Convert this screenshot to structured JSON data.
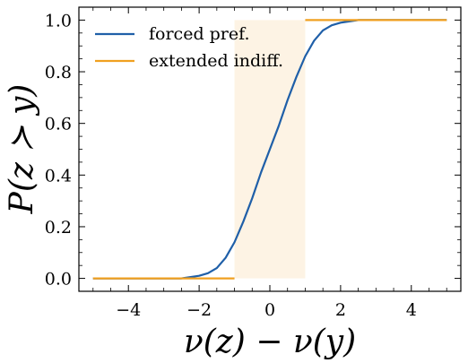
{
  "chart_data": {
    "type": "line",
    "xlabel": "ν(z) − ν(y)",
    "ylabel": "P(z ≻ y)",
    "xlim": [
      -5.4,
      5.4
    ],
    "ylim": [
      -0.05,
      1.05
    ],
    "xticks": [
      -4,
      -2,
      0,
      2,
      4
    ],
    "xtick_labels": [
      "−4",
      "−2",
      "0",
      "2",
      "4"
    ],
    "yticks": [
      0.0,
      0.2,
      0.4,
      0.6,
      0.8,
      1.0
    ],
    "ytick_labels": [
      "0.0",
      "0.2",
      "0.4",
      "0.6",
      "0.8",
      "1.0"
    ],
    "shaded_region": {
      "x": [
        -1,
        1
      ],
      "color": "#fdf3e4"
    },
    "legend": "top-left",
    "grid": false,
    "series": [
      {
        "name": "forced pref.",
        "color": "#1f5fa8",
        "x": [
          -5,
          -4.5,
          -4,
          -3.5,
          -3,
          -2.5,
          -2,
          -1.75,
          -1.5,
          -1.25,
          -1,
          -0.75,
          -0.5,
          -0.25,
          0,
          0.25,
          0.5,
          0.75,
          1,
          1.25,
          1.5,
          1.75,
          2,
          2.5,
          3,
          3.5,
          4,
          4.5,
          5
        ],
        "y": [
          0.0,
          0.0,
          0.0,
          0.0,
          0.0,
          0.0,
          0.01,
          0.02,
          0.04,
          0.08,
          0.14,
          0.22,
          0.31,
          0.41,
          0.5,
          0.59,
          0.69,
          0.78,
          0.86,
          0.92,
          0.96,
          0.98,
          0.99,
          1.0,
          1.0,
          1.0,
          1.0,
          1.0,
          1.0
        ]
      },
      {
        "name": "extended indiff.",
        "color": "#f0a020",
        "segments": [
          {
            "x": [
              -5,
              -1
            ],
            "y": [
              0.0,
              0.0
            ]
          },
          {
            "x": [
              1,
              5
            ],
            "y": [
              1.0,
              1.0
            ]
          }
        ]
      }
    ]
  }
}
